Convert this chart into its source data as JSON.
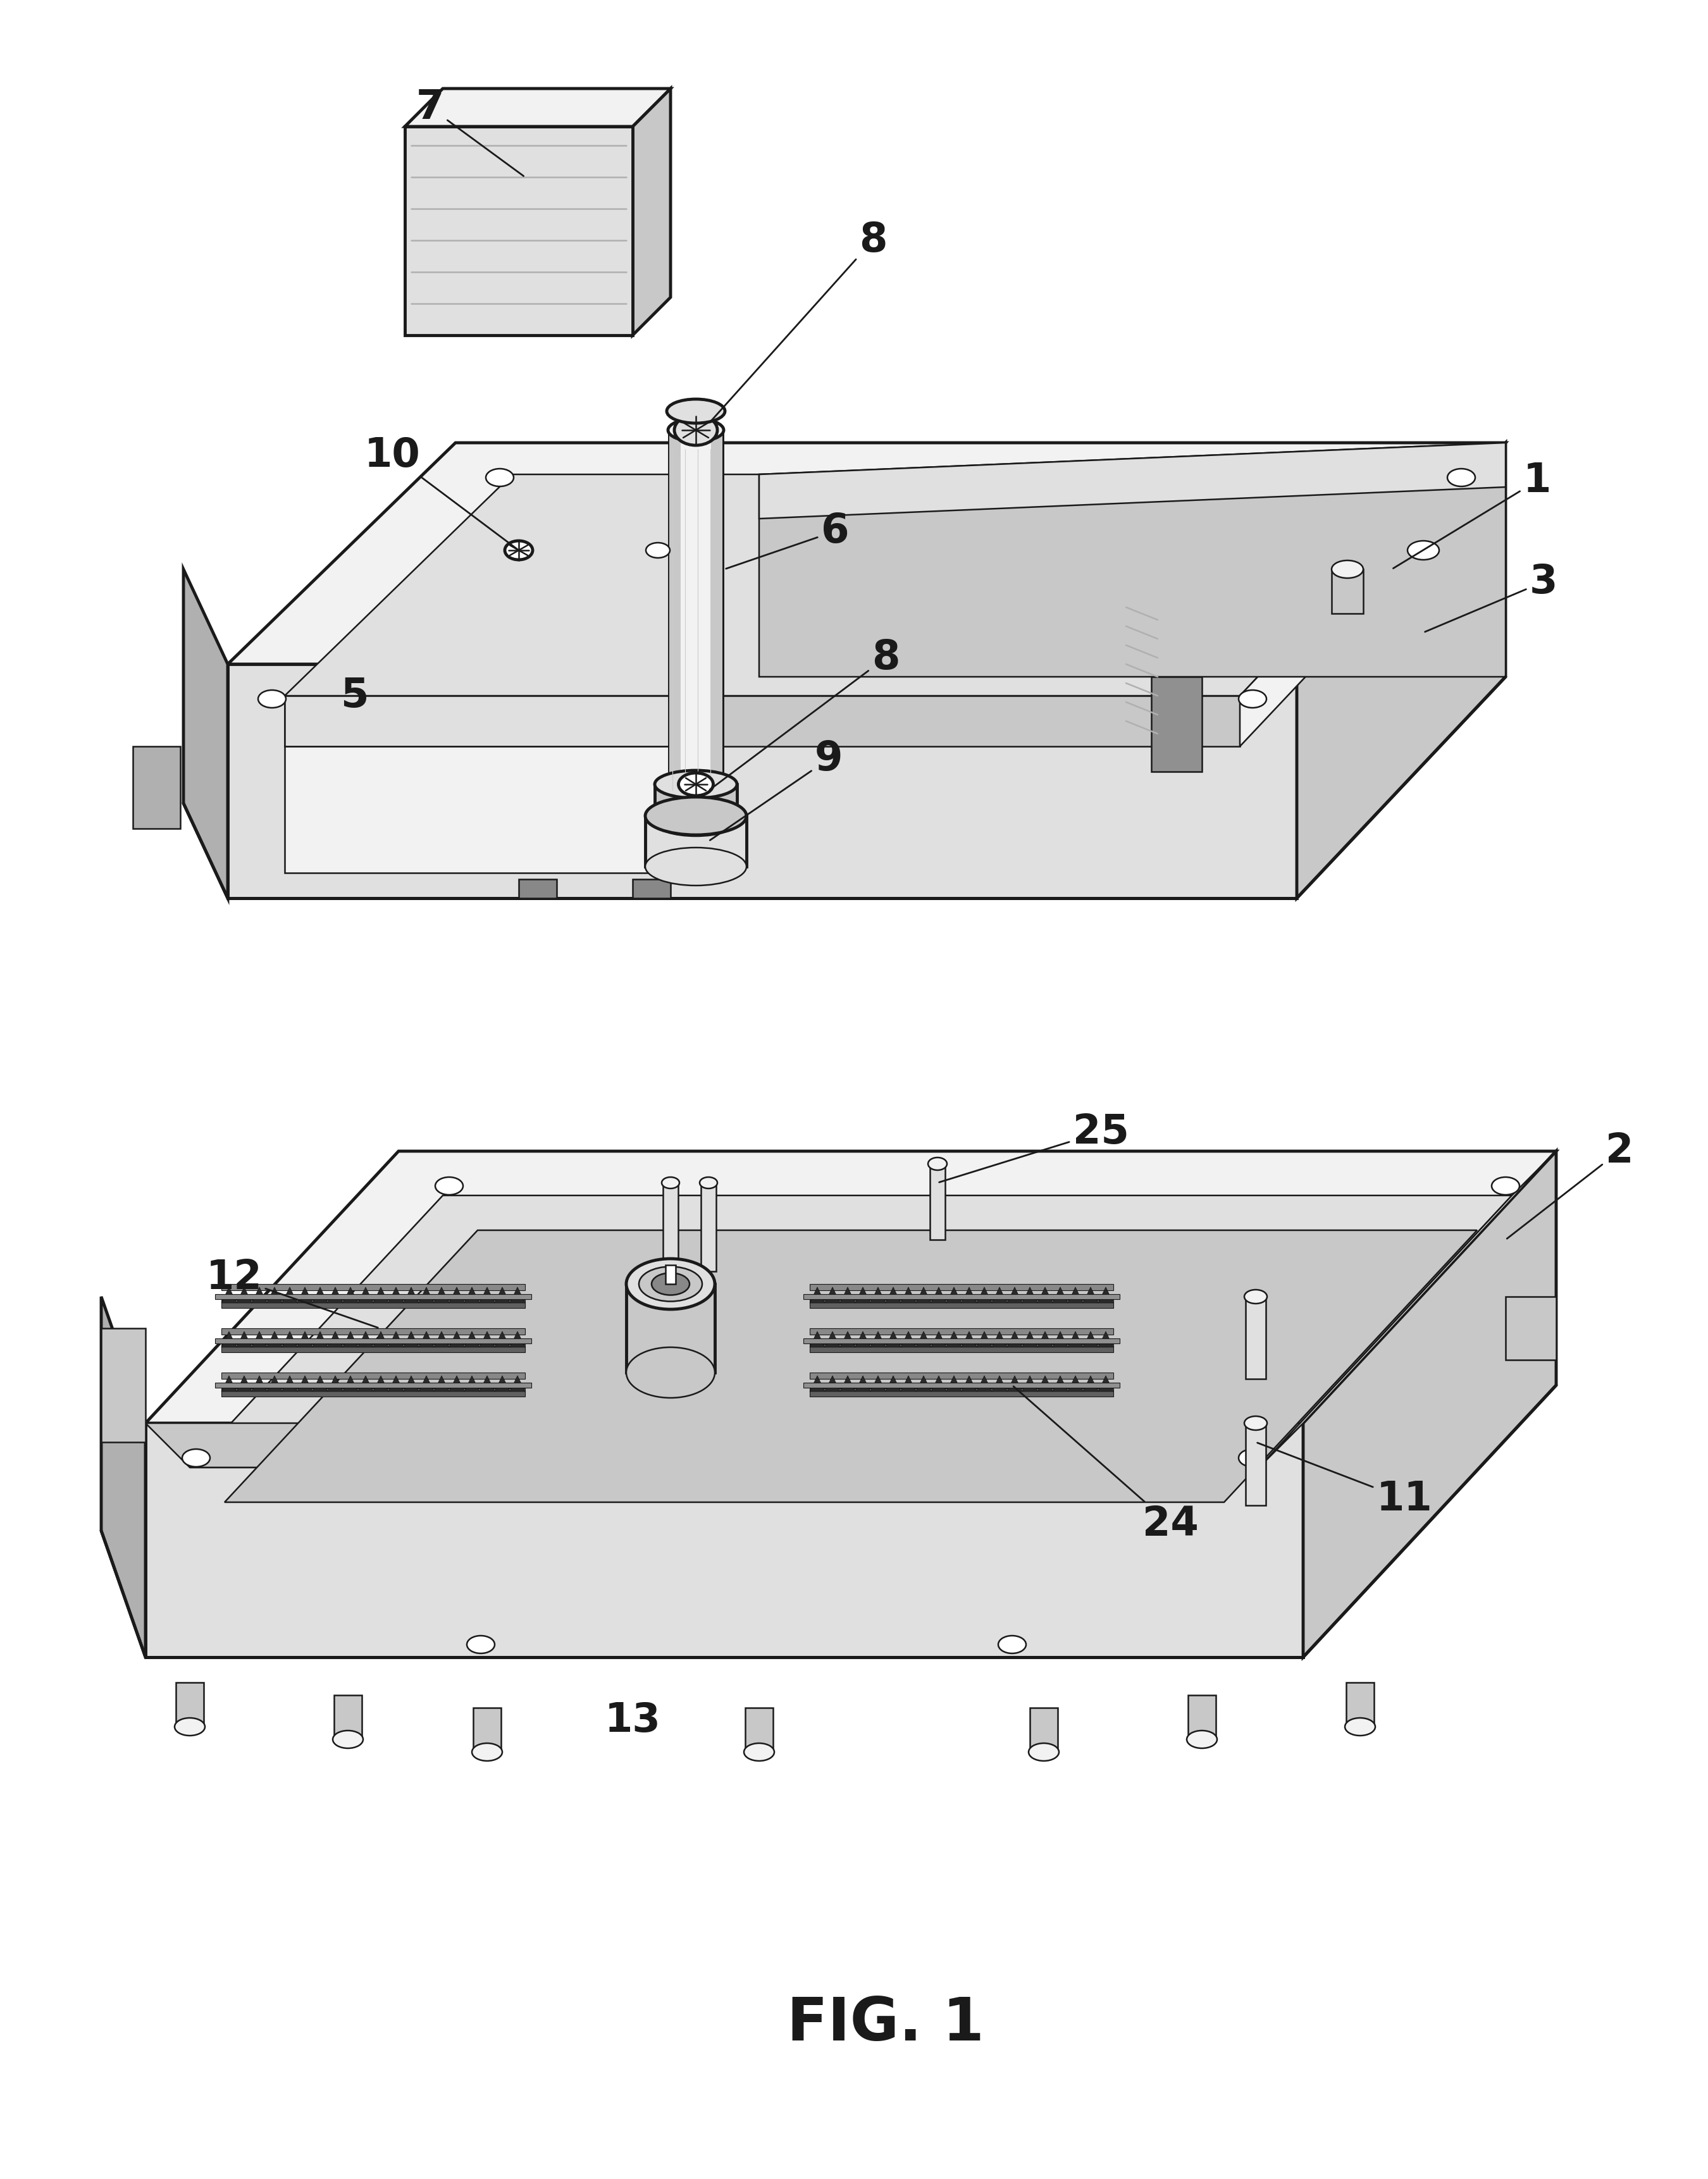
{
  "title": "FIG. 1",
  "title_fontsize": 68,
  "title_fontweight": "bold",
  "background_color": "#ffffff",
  "line_color": "#1a1a1a",
  "line_width": 3.5,
  "thin_lw": 1.8,
  "fig_width": 27.0,
  "fig_height": 34.45,
  "label_fontsize": 46,
  "label_fontweight": "bold",
  "gray_light": "#f2f2f2",
  "gray_mid": "#e0e0e0",
  "gray_dark": "#c8c8c8",
  "gray_darker": "#b0b0b0",
  "gray_shadow": "#d0d0d0"
}
